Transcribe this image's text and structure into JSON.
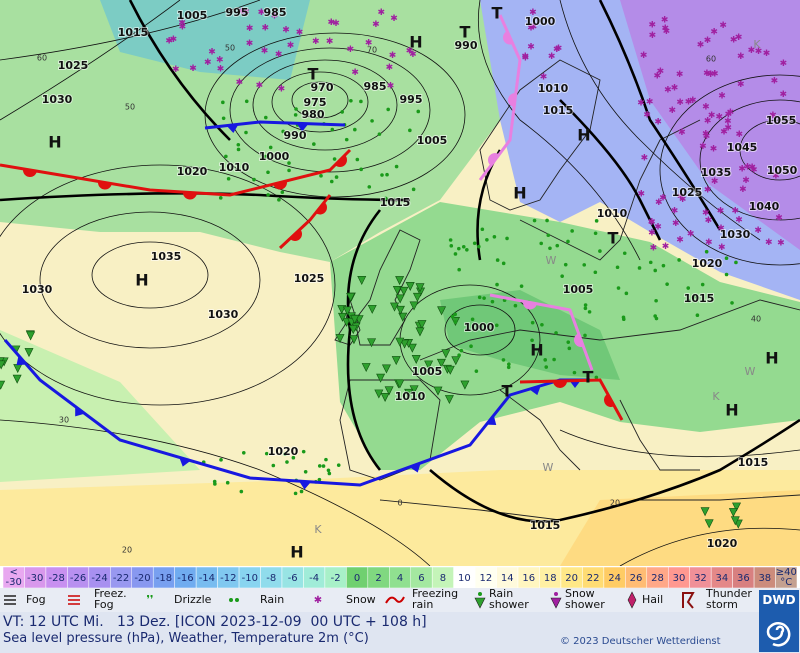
{
  "map": {
    "pressure_labels": [
      "1005",
      "995",
      "985",
      "1015",
      "1025",
      "1030",
      "970",
      "975",
      "980",
      "985",
      "995",
      "990",
      "1000",
      "1010",
      "1020",
      "1005",
      "1015",
      "990",
      "1000",
      "1010",
      "1015",
      "1055",
      "1045",
      "1035",
      "1050",
      "1025",
      "1040",
      "1010",
      "1030",
      "1020",
      "1005",
      "1015",
      "1035",
      "1030",
      "1025",
      "1030",
      "1000",
      "1005",
      "1010",
      "1020",
      "1015",
      "1015",
      "1020"
    ],
    "isotherm_labels": [
      "60",
      "50",
      "70",
      "50",
      "60",
      "40",
      "30",
      "20",
      "0",
      "20"
    ],
    "pressure_centers": [
      "H",
      "H",
      "H",
      "T",
      "T",
      "T",
      "H",
      "H",
      "T",
      "H",
      "T",
      "T",
      "H",
      "H",
      "H"
    ],
    "air_mass_labels": [
      "K",
      "K",
      "K",
      "W",
      "W",
      "W"
    ]
  },
  "temperature_scale": {
    "cells": [
      {
        "lines": [
          "<",
          "-30"
        ],
        "color": "#e8a8f0"
      },
      {
        "lines": [
          "-30"
        ],
        "color": "#d898ec"
      },
      {
        "lines": [
          "-28"
        ],
        "color": "#c890f0"
      },
      {
        "lines": [
          "-26"
        ],
        "color": "#b890f0"
      },
      {
        "lines": [
          "-24"
        ],
        "color": "#a890f0"
      },
      {
        "lines": [
          "-22"
        ],
        "color": "#9898f0"
      },
      {
        "lines": [
          "-20"
        ],
        "color": "#8898f0"
      },
      {
        "lines": [
          "-18"
        ],
        "color": "#78a0f0"
      },
      {
        "lines": [
          "-16"
        ],
        "color": "#70acf0"
      },
      {
        "lines": [
          "-14"
        ],
        "color": "#78bcf0"
      },
      {
        "lines": [
          "-12"
        ],
        "color": "#80c8f0"
      },
      {
        "lines": [
          "-10"
        ],
        "color": "#88d4f0"
      },
      {
        "lines": [
          "-8"
        ],
        "color": "#90dcec"
      },
      {
        "lines": [
          "-6"
        ],
        "color": "#98e4e4"
      },
      {
        "lines": [
          "-4"
        ],
        "color": "#a0ecd8"
      },
      {
        "lines": [
          "-2"
        ],
        "color": "#a8f0c8"
      },
      {
        "lines": [
          "0"
        ],
        "color": "#70d070"
      },
      {
        "lines": [
          "2"
        ],
        "color": "#80d880"
      },
      {
        "lines": [
          "4"
        ],
        "color": "#90e090"
      },
      {
        "lines": [
          "6"
        ],
        "color": "#a4e8a0"
      },
      {
        "lines": [
          "8"
        ],
        "color": "#c4f4b8"
      },
      {
        "lines": [
          "10"
        ],
        "color": "#ffffff"
      },
      {
        "lines": [
          "12"
        ],
        "color": "#fffff0"
      },
      {
        "lines": [
          "14"
        ],
        "color": "#fffadc"
      },
      {
        "lines": [
          "16"
        ],
        "color": "#fff6c0"
      },
      {
        "lines": [
          "18"
        ],
        "color": "#fff0a4"
      },
      {
        "lines": [
          "20"
        ],
        "color": "#ffe888"
      },
      {
        "lines": [
          "22"
        ],
        "color": "#ffdc74"
      },
      {
        "lines": [
          "24"
        ],
        "color": "#ffcc64"
      },
      {
        "lines": [
          "26"
        ],
        "color": "#ffbc74"
      },
      {
        "lines": [
          "28"
        ],
        "color": "#ffa888"
      },
      {
        "lines": [
          "30"
        ],
        "color": "#ff9890"
      },
      {
        "lines": [
          "32"
        ],
        "color": "#f09098"
      },
      {
        "lines": [
          "34"
        ],
        "color": "#e48888"
      },
      {
        "lines": [
          "36"
        ],
        "color": "#d88080"
      },
      {
        "lines": [
          "38"
        ],
        "color": "#cc8c7c"
      },
      {
        "lines": [
          "≥40",
          "°C"
        ],
        "color": "#c4a090"
      }
    ]
  },
  "weather_legend": [
    {
      "lines": [
        "Fog"
      ]
    },
    {
      "lines": [
        "Freez.",
        "Fog"
      ]
    },
    {
      "lines": [
        "Drizzle"
      ]
    },
    {
      "lines": [
        "Rain"
      ]
    },
    {
      "lines": [
        "Snow"
      ]
    },
    {
      "lines": [
        "Freezing",
        "rain"
      ]
    },
    {
      "lines": [
        "Rain",
        "shower"
      ]
    },
    {
      "lines": [
        "Snow",
        "shower"
      ]
    },
    {
      "lines": [
        "Hail"
      ]
    },
    {
      "lines": [
        "Thunder",
        "storm"
      ]
    }
  ],
  "footer": {
    "valid_time": "VT: 12 UTC Mi.   13 Dez. [ICON 2023-12-09  00 UTC + 108 h]",
    "description": "Sea level pressure (hPa), Weather, Temperature 2m (°C)",
    "copyright": "© 2023 Deutscher Wetterdienst",
    "logo": "DWD"
  }
}
